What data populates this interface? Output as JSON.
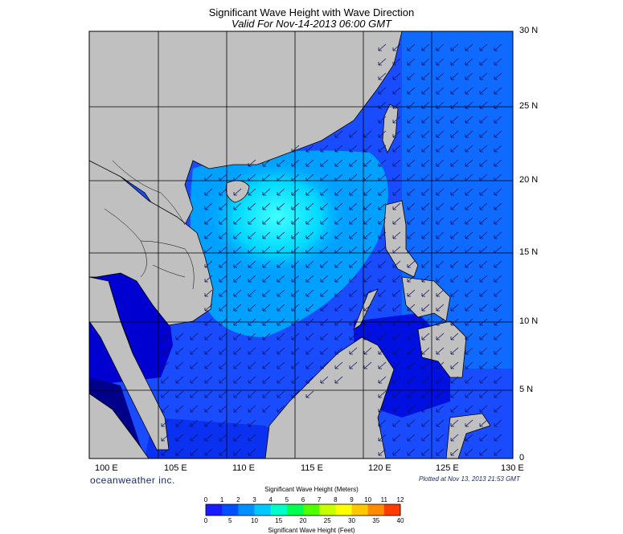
{
  "title": "Significant Wave Height with Wave Direction",
  "subtitle": "Valid For Nov-14-2013 06:00 GMT",
  "lat_labels": [
    "30 N",
    "25 N",
    "20 N",
    "15 N",
    "10 N",
    "5 N",
    "0"
  ],
  "lon_labels": [
    "100 E",
    "105 E",
    "110 E",
    "115 E",
    "120 E",
    "125 E",
    "130 E"
  ],
  "branding": "oceanweather inc.",
  "plotted_at": "Plotted at Nov 13, 2013 21:53 GMT",
  "legend": {
    "meters_title": "Significant Wave Height (Meters)",
    "feet_title": "Significant Wave Height (Feet)",
    "meters_ticks": [
      "0",
      "1",
      "2",
      "3",
      "4",
      "5",
      "6",
      "7",
      "8",
      "9",
      "10",
      "11",
      "12"
    ],
    "feet_ticks": [
      "0",
      "5",
      "10",
      "15",
      "20",
      "25",
      "30",
      "35",
      "40"
    ],
    "colors": [
      "#1a1aff",
      "#0050ff",
      "#0090ff",
      "#00c8ff",
      "#00ffc8",
      "#00ff50",
      "#50ff00",
      "#c8ff00",
      "#ffff00",
      "#ffc800",
      "#ff8c00",
      "#ff3c00"
    ]
  },
  "colors": {
    "land": "#c0c0c0",
    "deep_blue": "#0000d0",
    "mid_blue": "#1a5aff",
    "light_blue": "#00a0ff",
    "cyan": "#00e0ff",
    "arrow": "#101060"
  },
  "map": {
    "lat_range": [
      0,
      30
    ],
    "lon_range": [
      100,
      130
    ],
    "wave_direction": "toward southwest"
  }
}
